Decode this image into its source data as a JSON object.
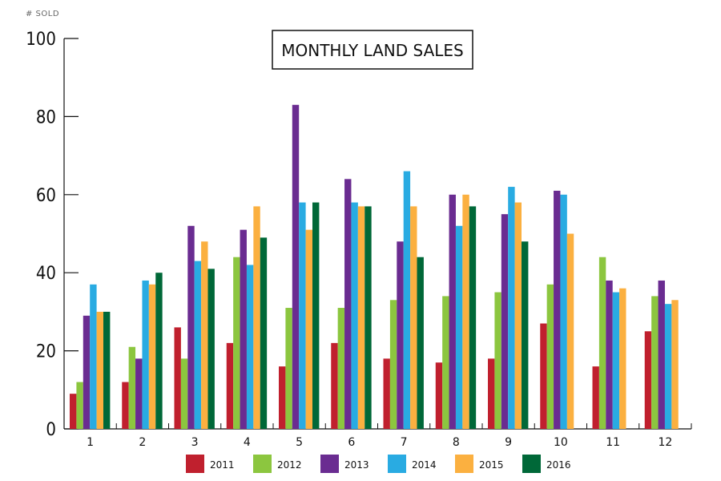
{
  "chart_data": {
    "type": "bar",
    "title": "MONTHLY LAND SALES",
    "ylabel": "# SOLD",
    "xlabel": "",
    "ylim": [
      0,
      100
    ],
    "yticks": [
      0,
      20,
      40,
      60,
      80,
      100
    ],
    "categories": [
      "1",
      "2",
      "3",
      "4",
      "5",
      "6",
      "7",
      "8",
      "9",
      "10",
      "11",
      "12"
    ],
    "legend_position": "bottom",
    "grid": false,
    "series": [
      {
        "name": "2011",
        "color": "#c0202e",
        "values": [
          9,
          12,
          26,
          22,
          16,
          22,
          18,
          17,
          18,
          27,
          16,
          25
        ]
      },
      {
        "name": "2012",
        "color": "#8cc63f",
        "values": [
          12,
          21,
          18,
          44,
          31,
          31,
          33,
          34,
          35,
          37,
          44,
          34
        ]
      },
      {
        "name": "2013",
        "color": "#6a2c91",
        "values": [
          29,
          18,
          52,
          51,
          83,
          64,
          48,
          60,
          55,
          61,
          38,
          38
        ]
      },
      {
        "name": "2014",
        "color": "#29abe2",
        "values": [
          37,
          38,
          43,
          42,
          58,
          58,
          66,
          52,
          62,
          60,
          35,
          32
        ]
      },
      {
        "name": "2015",
        "color": "#fbb040",
        "values": [
          30,
          37,
          48,
          57,
          51,
          57,
          57,
          60,
          58,
          50,
          36,
          33
        ]
      },
      {
        "name": "2016",
        "color": "#006838",
        "values": [
          30,
          40,
          41,
          49,
          58,
          57,
          44,
          57,
          48,
          null,
          null,
          null
        ]
      }
    ]
  }
}
